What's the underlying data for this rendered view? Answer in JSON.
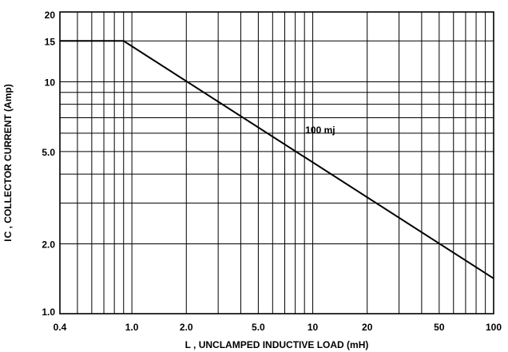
{
  "chart_data": {
    "type": "line",
    "title": "",
    "xlabel": "L , UNCLAMPED  INDUCTIVE LOAD (mH)",
    "ylabel": "I C , COLLECTOR CURRENT (Amp)",
    "xscale": "log",
    "yscale": "log",
    "xlim": [
      0.4,
      100
    ],
    "ylim": [
      1.0,
      20
    ],
    "grid": true,
    "legend": "none",
    "x_ticks": [
      {
        "value": 0.4,
        "label": "0.4"
      },
      {
        "value": 1.0,
        "label": "1.0"
      },
      {
        "value": 2.0,
        "label": "2.0"
      },
      {
        "value": 5.0,
        "label": "5.0"
      },
      {
        "value": 10,
        "label": "10"
      },
      {
        "value": 20,
        "label": "20"
      },
      {
        "value": 50,
        "label": "50"
      },
      {
        "value": 100,
        "label": "100"
      }
    ],
    "y_ticks": [
      {
        "value": 1.0,
        "label": "1.0"
      },
      {
        "value": 2.0,
        "label": "2.0"
      },
      {
        "value": 5.0,
        "label": "5.0"
      },
      {
        "value": 10,
        "label": "10"
      },
      {
        "value": 15,
        "label": "15"
      },
      {
        "value": 20,
        "label": "20"
      }
    ],
    "x_grid": [
      0.4,
      0.5,
      0.6,
      0.7,
      0.8,
      0.9,
      1,
      2,
      3,
      4,
      5,
      6,
      7,
      8,
      9,
      10,
      20,
      30,
      40,
      50,
      60,
      70,
      80,
      90,
      100
    ],
    "y_grid": [
      1,
      2,
      3,
      4,
      5,
      6,
      7,
      8,
      9,
      10,
      15,
      20
    ],
    "series": [
      {
        "name": "",
        "x": [
          0.4,
          0.9,
          100
        ],
        "y": [
          15,
          15,
          1.42
        ]
      }
    ],
    "annotations": [
      {
        "text": "100 mj",
        "x": 11,
        "y": 6.0
      }
    ]
  }
}
